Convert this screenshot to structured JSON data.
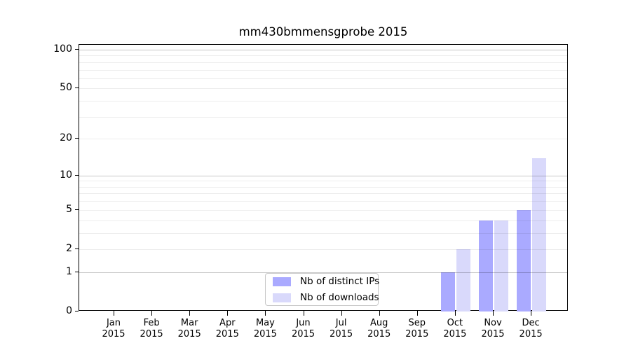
{
  "chart_data": {
    "type": "bar",
    "title": "mm430bmmensgprobe 2015",
    "categories": [
      "Jan 2015",
      "Feb 2015",
      "Mar 2015",
      "Apr 2015",
      "May 2015",
      "Jun 2015",
      "Jul 2015",
      "Aug 2015",
      "Sep 2015",
      "Oct 2015",
      "Nov 2015",
      "Dec 2015"
    ],
    "x_labels": [
      [
        "Jan",
        "2015"
      ],
      [
        "Feb",
        "2015"
      ],
      [
        "Mar",
        "2015"
      ],
      [
        "Apr",
        "2015"
      ],
      [
        "May",
        "2015"
      ],
      [
        "Jun",
        "2015"
      ],
      [
        "Jul",
        "2015"
      ],
      [
        "Aug",
        "2015"
      ],
      [
        "Sep",
        "2015"
      ],
      [
        "Oct",
        "2015"
      ],
      [
        "Nov",
        "2015"
      ],
      [
        "Dec",
        "2015"
      ]
    ],
    "series": [
      {
        "name": "Nb of distinct IPs",
        "color": "#aaaaff",
        "values": [
          0,
          0,
          0,
          0,
          0,
          0,
          0,
          0,
          0,
          1,
          4,
          5
        ]
      },
      {
        "name": "Nb of downloads",
        "color": "#d9d9fb",
        "values": [
          0,
          0,
          0,
          0,
          0,
          0,
          0,
          0,
          0,
          2,
          4,
          14
        ]
      }
    ],
    "xlabel": "",
    "ylabel": "",
    "yscale": "log10(1+y)",
    "ylim": [
      0,
      109
    ],
    "yticks": [
      0,
      1,
      2,
      5,
      10,
      20,
      50,
      100
    ],
    "grid": {
      "on": true,
      "major_values": [
        1,
        10,
        100
      ],
      "minor_values": [
        2,
        3,
        4,
        5,
        6,
        7,
        8,
        9,
        20,
        30,
        40,
        50,
        60,
        70,
        80,
        90
      ],
      "major_color": "rgba(0,0,0,0.22)",
      "minor_color": "rgba(0,0,0,0.07)"
    },
    "legend_position": "bottom-center-inside"
  }
}
